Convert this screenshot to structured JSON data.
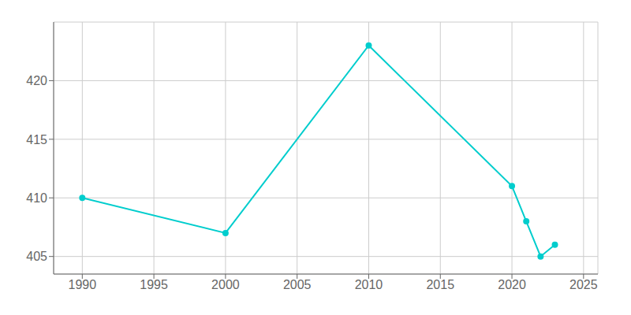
{
  "chart_data": {
    "type": "line",
    "x": [
      1990,
      2000,
      2010,
      2020,
      2021,
      2022,
      2023
    ],
    "values": [
      410,
      407,
      423,
      411,
      408,
      405,
      406
    ],
    "color": "#00CDCD",
    "marker": "circle",
    "xlim": [
      1988,
      2026
    ],
    "xticks": [
      1990,
      1995,
      2000,
      2005,
      2010,
      2015,
      2020,
      2025
    ],
    "ylim": [
      403.5,
      425
    ],
    "yticks": [
      405,
      410,
      415,
      420
    ],
    "grid": true
  }
}
